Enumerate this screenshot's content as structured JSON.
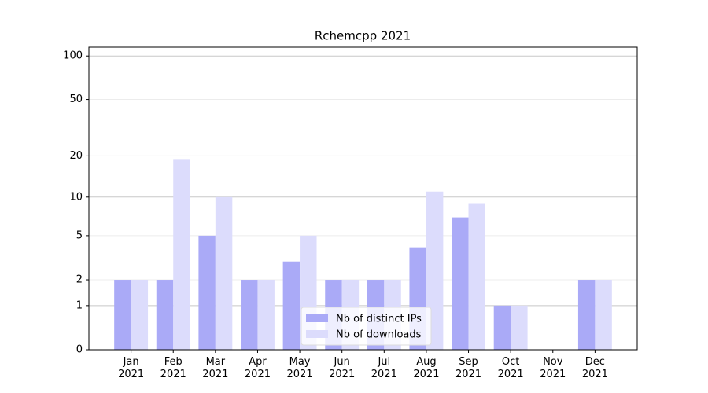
{
  "chart_data": {
    "type": "bar",
    "title": "Rchemcpp 2021",
    "categories": [
      "Jan 2021",
      "Feb 2021",
      "Mar 2021",
      "Apr 2021",
      "May 2021",
      "Jun 2021",
      "Jul 2021",
      "Aug 2021",
      "Sep 2021",
      "Oct 2021",
      "Nov 2021",
      "Dec 2021"
    ],
    "series": [
      {
        "name": "Nb of distinct IPs",
        "color": "#aaaaf7",
        "values": [
          2,
          2,
          5,
          2,
          3,
          2,
          2,
          4,
          7,
          1,
          0,
          2
        ]
      },
      {
        "name": "Nb of downloads",
        "color": "#dcdcfc",
        "values": [
          2,
          19,
          10,
          2,
          5,
          2,
          2,
          11,
          9,
          1,
          0,
          2
        ]
      }
    ],
    "y_scale": "log1p",
    "ylim": [
      0,
      115
    ],
    "yticks": [
      0,
      1,
      2,
      5,
      10,
      20,
      50,
      100
    ],
    "grid": true,
    "legend_position": "lower center"
  }
}
